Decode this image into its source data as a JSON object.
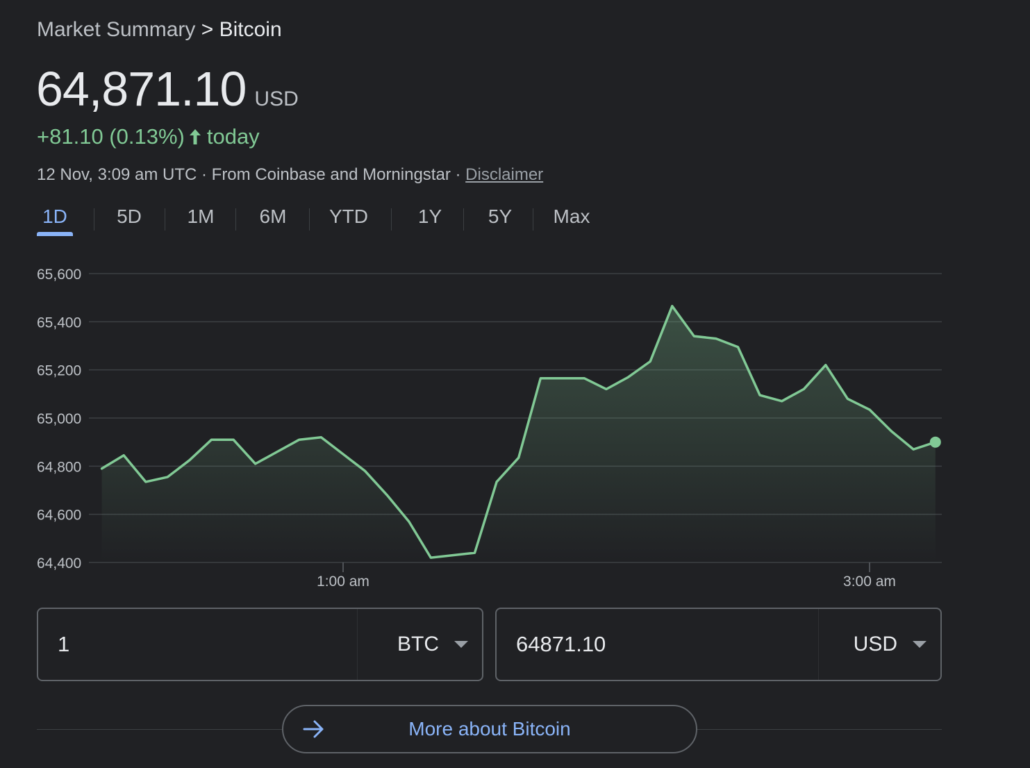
{
  "breadcrumb": {
    "parent": "Market Summary",
    "separator": ">",
    "current": "Bitcoin"
  },
  "quote": {
    "price": "64,871.10",
    "currency": "USD",
    "change": "+81.10 (0.13%)",
    "change_period": "today",
    "timestamp": "12 Nov, 3:09 am UTC",
    "source": "From Coinbase and Morningstar",
    "separator": "·",
    "disclaimer": "Disclaimer"
  },
  "tabs": [
    {
      "label": "1D",
      "active": true
    },
    {
      "label": "5D",
      "active": false
    },
    {
      "label": "1M",
      "active": false
    },
    {
      "label": "6M",
      "active": false
    },
    {
      "label": "YTD",
      "active": false
    },
    {
      "label": "1Y",
      "active": false
    },
    {
      "label": "5Y",
      "active": false
    },
    {
      "label": "Max",
      "active": false
    }
  ],
  "chart_data": {
    "type": "area",
    "x_unit": "time (UTC)",
    "x_ticks": [
      {
        "label": "1:00 am",
        "x": "01:00"
      },
      {
        "label": "3:00 am",
        "x": "03:00"
      }
    ],
    "y_ticks": [
      "65,600",
      "65,400",
      "65,200",
      "65,000",
      "64,800",
      "64,600",
      "64,400"
    ],
    "ylim": [
      64400,
      65600
    ],
    "grid": true,
    "series": [
      {
        "values": [
          {
            "x": "00:05",
            "y": 64790
          },
          {
            "x": "00:10",
            "y": 64845
          },
          {
            "x": "00:15",
            "y": 64735
          },
          {
            "x": "00:20",
            "y": 64755
          },
          {
            "x": "00:25",
            "y": 64825
          },
          {
            "x": "00:30",
            "y": 64910
          },
          {
            "x": "00:35",
            "y": 64910
          },
          {
            "x": "00:40",
            "y": 64810
          },
          {
            "x": "00:45",
            "y": 64860
          },
          {
            "x": "00:50",
            "y": 64910
          },
          {
            "x": "00:55",
            "y": 64920
          },
          {
            "x": "01:00",
            "y": 64850
          },
          {
            "x": "01:05",
            "y": 64780
          },
          {
            "x": "01:10",
            "y": 64680
          },
          {
            "x": "01:15",
            "y": 64570
          },
          {
            "x": "01:20",
            "y": 64420
          },
          {
            "x": "01:25",
            "y": 64430
          },
          {
            "x": "01:30",
            "y": 64440
          },
          {
            "x": "01:35",
            "y": 64735
          },
          {
            "x": "01:40",
            "y": 64835
          },
          {
            "x": "01:45",
            "y": 65165
          },
          {
            "x": "01:50",
            "y": 65165
          },
          {
            "x": "01:55",
            "y": 65165
          },
          {
            "x": "02:00",
            "y": 65120
          },
          {
            "x": "02:05",
            "y": 65170
          },
          {
            "x": "02:10",
            "y": 65235
          },
          {
            "x": "02:15",
            "y": 65465
          },
          {
            "x": "02:20",
            "y": 65340
          },
          {
            "x": "02:25",
            "y": 65330
          },
          {
            "x": "02:30",
            "y": 65295
          },
          {
            "x": "02:35",
            "y": 65095
          },
          {
            "x": "02:40",
            "y": 65070
          },
          {
            "x": "02:45",
            "y": 65120
          },
          {
            "x": "02:50",
            "y": 65220
          },
          {
            "x": "02:55",
            "y": 65080
          },
          {
            "x": "03:00",
            "y": 65035
          },
          {
            "x": "03:05",
            "y": 64945
          },
          {
            "x": "03:10",
            "y": 64870
          },
          {
            "x": "03:15",
            "y": 64900
          }
        ]
      }
    ],
    "colors": {
      "line": "#81c995",
      "grid": "#3c4043",
      "axis_text": "#bdc1c6"
    }
  },
  "converter": {
    "from_amount": "1",
    "from_unit": "BTC",
    "to_amount": "64871.10",
    "to_unit": "USD"
  },
  "more_button": {
    "label": "More about Bitcoin",
    "icon": "arrow-right-icon"
  },
  "colors": {
    "background": "#202124",
    "positive": "#81c995",
    "accent": "#8ab4f8",
    "text": "#e8eaed",
    "muted": "#bdc1c6"
  }
}
